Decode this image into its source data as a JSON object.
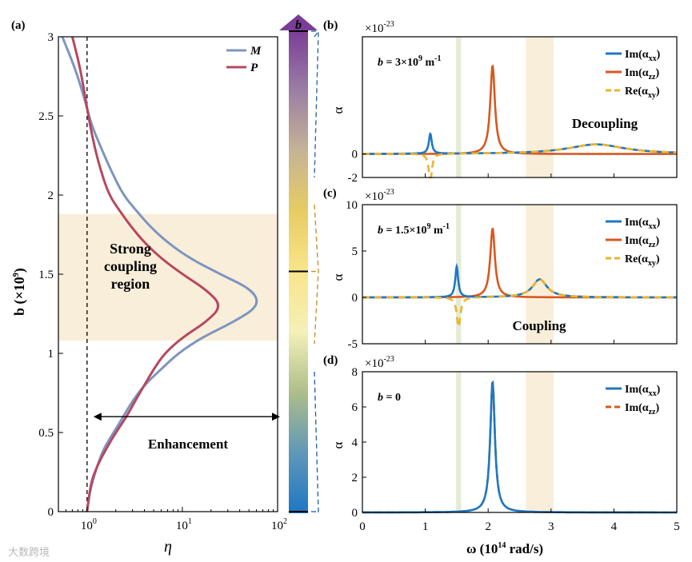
{
  "colors": {
    "M": "#7d95bf",
    "P": "#b6485f",
    "im_xx": "#1f77c4",
    "im_zz": "#d9571e",
    "re_xy": "#e9b52f",
    "band_green": "#e3ecd4",
    "band_orange": "#f8eed9",
    "strong_region": "#f8eed9",
    "colorbar_stops": [
      "#7a3d97",
      "#9a7fa4",
      "#c6b495",
      "#e6cc62",
      "#f9e58a",
      "#f4f0b8",
      "#aebd8a",
      "#5f98b7",
      "#1e77c4"
    ]
  },
  "panel_a": {
    "label": "(a)",
    "ylabel": "b (×10",
    "ylabel_sup": "9",
    "ylabel_close": ")",
    "xlabel": "η",
    "xticks": [
      {
        "v": 1,
        "label": "10",
        "sup": "0"
      },
      {
        "v": 10,
        "label": "10",
        "sup": "1"
      },
      {
        "v": 100,
        "label": "10",
        "sup": "2"
      }
    ],
    "yticks": [
      "0",
      "0.5",
      "1",
      "1.5",
      "2",
      "2.5",
      "3"
    ],
    "xlim": [
      0.5,
      100
    ],
    "ylim": [
      0,
      3
    ],
    "strong_region_b": [
      1.08,
      1.88
    ],
    "strong_text": [
      "Strong",
      "coupling",
      "region"
    ],
    "enhancement_text": "Enhancement",
    "arrow_b": 0.6,
    "legend": [
      {
        "name": "M",
        "key": "M"
      },
      {
        "name": "P",
        "key": "P"
      }
    ]
  },
  "colorbar": {
    "label": "b",
    "markers_b": [
      3,
      1.5,
      0
    ]
  },
  "panels_right": [
    {
      "label": "(b)",
      "scale": "×10",
      "scale_sup": "-23",
      "ylabel": "α",
      "ylim": [
        -2,
        10
      ],
      "yticks": [
        "-2",
        "0"
      ],
      "yticks_v": [
        -2,
        0
      ],
      "annotation": "b = 3×10",
      "annotation_sup": "9",
      "annotation_unit": " m",
      "annotation_unit_sup": "-1",
      "status": "Decoupling",
      "legend": [
        {
          "text": "Im(α",
          "sub": "xx",
          "close": ")",
          "key": "im_xx"
        },
        {
          "text": "Im(α",
          "sub": "zz",
          "close": ")",
          "key": "im_zz"
        },
        {
          "text": "Re(α",
          "sub": "xy",
          "close": ")",
          "key": "re_xy"
        }
      ],
      "series": {
        "im_xx": [
          {
            "w0": 1.08,
            "g": 0.028,
            "a": 1.7
          },
          {
            "w0": 3.72,
            "g": 0.55,
            "a": 0.82
          }
        ],
        "im_zz": [
          {
            "w0": 2.07,
            "g": 0.045,
            "a": 7.5
          }
        ],
        "re_xy": [
          {
            "w0": 1.08,
            "g": 0.03,
            "a": -2.4
          },
          {
            "w0": 3.72,
            "g": 0.55,
            "a": 0.82
          }
        ]
      }
    },
    {
      "label": "(c)",
      "scale": "×10",
      "scale_sup": "-23",
      "ylabel": "α",
      "ylim": [
        -5,
        10
      ],
      "yticks": [
        "-5",
        "0",
        "5",
        "10"
      ],
      "yticks_v": [
        -5,
        0,
        5,
        10
      ],
      "annotation": "b = 1.5×10",
      "annotation_sup": "9",
      "annotation_unit": " m",
      "annotation_unit_sup": "-1",
      "status": "Coupling",
      "legend": [
        {
          "text": "Im(α",
          "sub": "xx",
          "close": ")",
          "key": "im_xx"
        },
        {
          "text": "Im(α",
          "sub": "zz",
          "close": ")",
          "key": "im_zz"
        },
        {
          "text": "Re(α",
          "sub": "xy",
          "close": ")",
          "key": "re_xy"
        }
      ],
      "series": {
        "im_xx": [
          {
            "w0": 1.5,
            "g": 0.028,
            "a": 3.3
          },
          {
            "w0": 2.82,
            "g": 0.14,
            "a": 1.95
          }
        ],
        "im_zz": [
          {
            "w0": 2.07,
            "g": 0.045,
            "a": 7.4
          }
        ],
        "re_xy": [
          {
            "w0": 1.53,
            "g": 0.035,
            "a": -3.2
          },
          {
            "w0": 2.82,
            "g": 0.14,
            "a": 1.95
          }
        ]
      }
    },
    {
      "label": "(d)",
      "scale": "×10",
      "scale_sup": "-23",
      "ylabel": "α",
      "ylim": [
        0,
        8
      ],
      "yticks": [
        "0",
        "2",
        "4",
        "6",
        "8"
      ],
      "yticks_v": [
        0,
        2,
        4,
        6,
        8
      ],
      "annotation": "b = 0",
      "annotation_sup": "",
      "annotation_unit": "",
      "annotation_unit_sup": "",
      "status": "",
      "legend": [
        {
          "text": "Im(α",
          "sub": "xx",
          "close": ")",
          "key": "im_xx"
        },
        {
          "text": "Im(α",
          "sub": "zz",
          "close": ")",
          "key": "im_zz"
        }
      ],
      "series": {
        "im_xx": [
          {
            "w0": 2.07,
            "g": 0.045,
            "a": 7.4
          }
        ],
        "im_zz": [
          {
            "w0": 2.07,
            "g": 0.045,
            "a": 7.4
          }
        ]
      }
    }
  ],
  "shared_x": {
    "xlim": [
      0,
      5
    ],
    "xticks": [
      "0",
      "1",
      "2",
      "3",
      "4",
      "5"
    ],
    "xlabel": "ω (10",
    "xlabel_sup": "14",
    "xlabel_close": " rad/s)",
    "band_green_w": [
      1.49,
      1.57
    ],
    "band_orange_w": [
      2.6,
      3.04
    ]
  },
  "chart_data": [
    {
      "type": "line",
      "title": "(a)",
      "xlabel": "η",
      "ylabel": "b (×10^9)",
      "xscale": "log",
      "xlim": [
        0.5,
        100
      ],
      "ylim": [
        0,
        3
      ],
      "series": [
        {
          "name": "M",
          "points": [
            [
              1.0,
              0.0
            ],
            [
              1.05,
              0.1
            ],
            [
              1.15,
              0.2
            ],
            [
              1.3,
              0.3
            ],
            [
              1.5,
              0.4
            ],
            [
              1.9,
              0.5
            ],
            [
              2.4,
              0.6
            ],
            [
              3.0,
              0.7
            ],
            [
              4.0,
              0.8
            ],
            [
              6.0,
              0.9
            ],
            [
              9.0,
              1.0
            ],
            [
              16.0,
              1.1
            ],
            [
              35.0,
              1.2
            ],
            [
              64.0,
              1.3
            ],
            [
              55.0,
              1.4
            ],
            [
              25.0,
              1.5
            ],
            [
              12.0,
              1.6
            ],
            [
              7.0,
              1.7
            ],
            [
              4.6,
              1.8
            ],
            [
              3.3,
              1.9
            ],
            [
              2.4,
              2.0
            ],
            [
              1.8,
              2.15
            ],
            [
              1.4,
              2.3
            ],
            [
              1.1,
              2.45
            ],
            [
              0.95,
              2.6
            ],
            [
              0.75,
              2.8
            ],
            [
              0.55,
              3.0
            ]
          ]
        },
        {
          "name": "P",
          "points": [
            [
              1.0,
              0.0
            ],
            [
              1.05,
              0.1
            ],
            [
              1.12,
              0.2
            ],
            [
              1.3,
              0.3
            ],
            [
              1.6,
              0.4
            ],
            [
              2.0,
              0.5
            ],
            [
              2.6,
              0.6
            ],
            [
              3.2,
              0.7
            ],
            [
              4.0,
              0.8
            ],
            [
              5.0,
              0.9
            ],
            [
              6.5,
              1.0
            ],
            [
              10.0,
              1.1
            ],
            [
              18.0,
              1.2
            ],
            [
              26.0,
              1.3
            ],
            [
              18.0,
              1.4
            ],
            [
              10.0,
              1.5
            ],
            [
              6.0,
              1.6
            ],
            [
              4.0,
              1.7
            ],
            [
              2.9,
              1.8
            ],
            [
              2.2,
              1.9
            ],
            [
              1.7,
              2.0
            ],
            [
              1.4,
              2.15
            ],
            [
              1.2,
              2.3
            ],
            [
              1.07,
              2.45
            ],
            [
              1.0,
              2.55
            ],
            [
              0.85,
              2.8
            ],
            [
              0.7,
              3.0
            ]
          ]
        }
      ]
    },
    {
      "type": "line",
      "title": "(b) b = 3×10^9 m^-1",
      "xlabel": "ω (10^14 rad/s)",
      "ylabel": "α (×10^-23)",
      "xlim": [
        0,
        5
      ],
      "ylim": [
        -2,
        10
      ],
      "series": [
        {
          "name": "Im(α_xx)",
          "peaks_x": [
            1.08,
            3.72
          ],
          "peaks_y": [
            1.7,
            0.8
          ]
        },
        {
          "name": "Im(α_zz)",
          "peaks_x": [
            2.07
          ],
          "peaks_y": [
            7.5
          ]
        },
        {
          "name": "Re(α_xy)",
          "peaks_x": [
            1.08,
            3.72
          ],
          "peaks_y": [
            -2.4,
            0.8
          ]
        }
      ]
    },
    {
      "type": "line",
      "title": "(c) b = 1.5×10^9 m^-1",
      "xlabel": "ω (10^14 rad/s)",
      "ylabel": "α (×10^-23)",
      "xlim": [
        0,
        5
      ],
      "ylim": [
        -5,
        10
      ],
      "series": [
        {
          "name": "Im(α_xx)",
          "peaks_x": [
            1.5,
            2.82
          ],
          "peaks_y": [
            3.3,
            1.95
          ]
        },
        {
          "name": "Im(α_zz)",
          "peaks_x": [
            2.07
          ],
          "peaks_y": [
            7.4
          ]
        },
        {
          "name": "Re(α_xy)",
          "peaks_x": [
            1.53,
            2.82
          ],
          "peaks_y": [
            -3.2,
            1.95
          ]
        }
      ]
    },
    {
      "type": "line",
      "title": "(d) b = 0",
      "xlabel": "ω (10^14 rad/s)",
      "ylabel": "α (×10^-23)",
      "xlim": [
        0,
        5
      ],
      "ylim": [
        0,
        8
      ],
      "series": [
        {
          "name": "Im(α_xx)",
          "peaks_x": [
            2.07
          ],
          "peaks_y": [
            7.4
          ]
        },
        {
          "name": "Im(α_zz)",
          "peaks_x": [
            2.07
          ],
          "peaks_y": [
            7.4
          ]
        }
      ]
    }
  ],
  "watermark": "大数跨境"
}
